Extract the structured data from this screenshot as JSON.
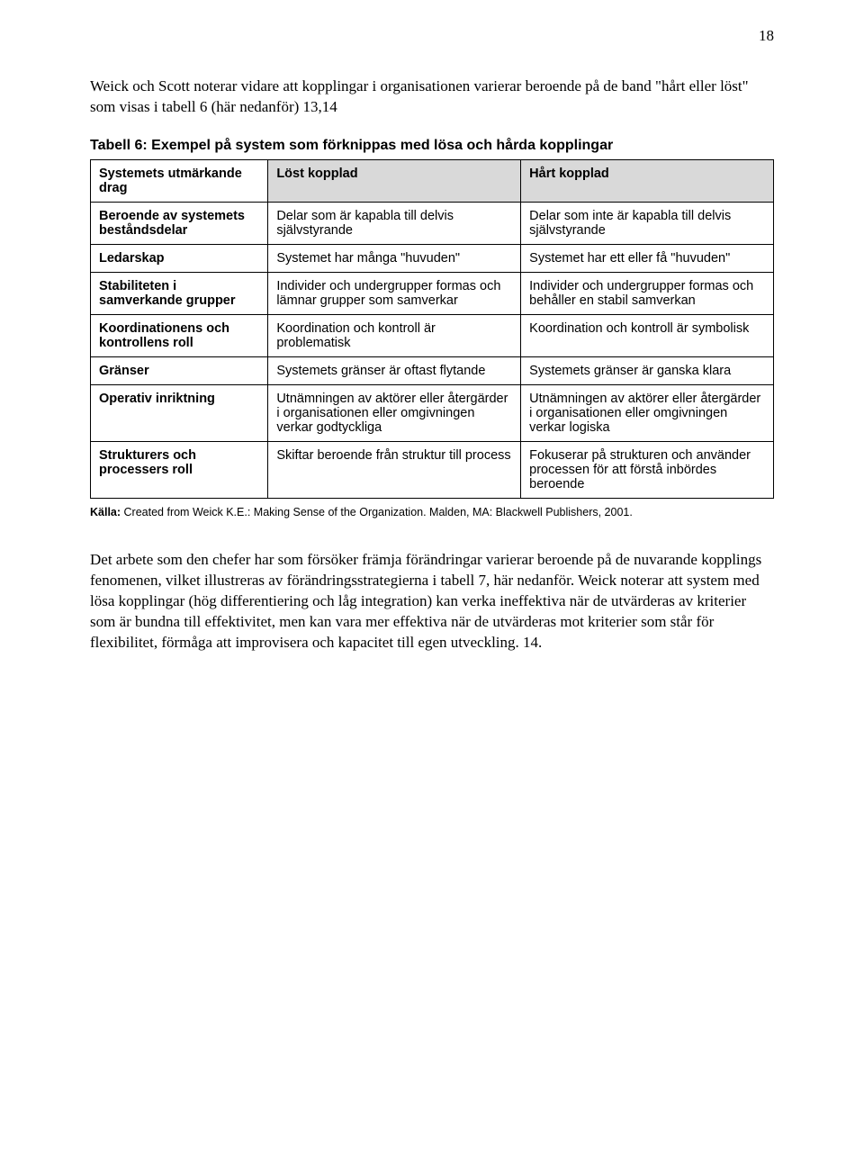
{
  "page_number": "18",
  "intro_text": "Weick och Scott noterar vidare att kopplingar i organisationen varierar beroende på de band \"hårt eller löst\" som visas i tabell 6 (här nedanför) 13,14",
  "table_title": "Tabell 6: Exempel på system som förknippas med lösa och hårda kopplingar",
  "table": {
    "type": "table",
    "header_bg": "#d9d9d9",
    "border_color": "#000000",
    "font_family": "Arial",
    "body_fontsize": 14.5,
    "columns": [
      {
        "key": "drag",
        "label": "Systemets utmärkande drag",
        "width_pct": 26
      },
      {
        "key": "lost",
        "label": "Löst kopplad",
        "width_pct": 37
      },
      {
        "key": "hart",
        "label": "Hårt kopplad",
        "width_pct": 37
      }
    ],
    "rows": [
      {
        "drag": "Beroende av systemets beståndsdelar",
        "lost": "Delar som är kapabla till delvis självstyrande",
        "hart": "Delar som inte är kapabla till delvis självstyrande"
      },
      {
        "drag": "Ledarskap",
        "lost": "Systemet har många \"huvuden\"",
        "hart": "Systemet har ett eller få \"huvuden\""
      },
      {
        "drag": "Stabiliteten i samverkande grupper",
        "lost": "Individer och undergrupper formas och lämnar grupper som samverkar",
        "hart": "Individer och undergrupper formas och behåller en stabil samverkan"
      },
      {
        "drag": "Koordinationens och kontrollens roll",
        "lost": "Koordination och kontroll är problematisk",
        "hart": "Koordination och kontroll är symbolisk"
      },
      {
        "drag": "Gränser",
        "lost": "Systemets gränser är oftast flytande",
        "hart": "Systemets gränser är ganska klara"
      },
      {
        "drag": "Operativ inriktning",
        "lost": "Utnämningen av aktörer eller återgärder i organisationen eller omgivningen verkar godtyckliga",
        "hart": "Utnämningen av aktörer eller återgärder i organisationen eller omgivningen verkar logiska"
      },
      {
        "drag": "Strukturers och processers roll",
        "lost": "Skiftar beroende från struktur till process",
        "hart": "Fokuserar på strukturen och använder processen för att förstå inbördes beroende"
      }
    ]
  },
  "source_label": "Källa:",
  "source_text": "Created from Weick K.E.: Making Sense of the Organization. Malden, MA: Blackwell Publishers, 2001.",
  "closing_text": "Det arbete som den chefer har som försöker främja förändringar varierar beroende på de nuvarande kopplings fenomenen, vilket illustreras av förändringsstrategierna i tabell 7, här nedanför. Weick noterar att system med lösa kopplingar (hög differentiering och låg integration) kan verka ineffektiva när de utvärderas av kriterier som är bundna till effektivitet, men kan vara mer effektiva när de utvärderas mot kriterier som står för flexibilitet, förmåga att improvisera och kapacitet till egen utveckling. 14."
}
